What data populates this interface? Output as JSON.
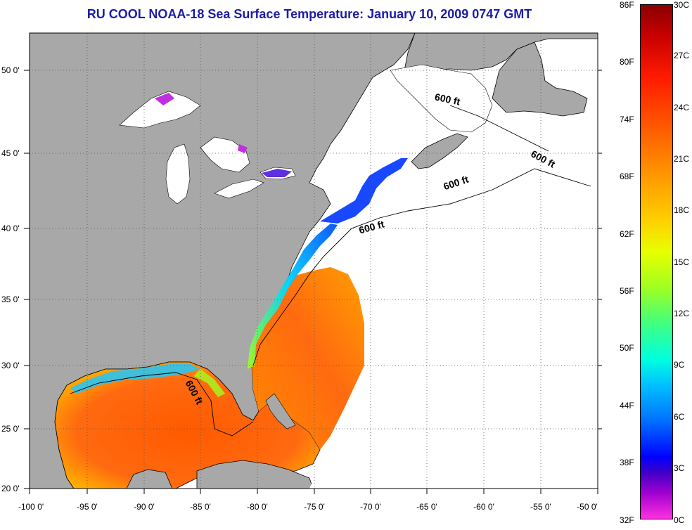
{
  "title": "RU COOL  NOAA-18  Sea Surface Temperature:  January 10, 2009 0747 GMT",
  "lat_labels": [
    "50 0'",
    "45 0'",
    "40 0'",
    "35 0'",
    "30 0'",
    "25 0'",
    "20 0'"
  ],
  "lon_labels": [
    "-100 0'",
    "-95 0'",
    "-90 0'",
    "-85 0'",
    "-80 0'",
    "-75 0'",
    "-70 0'",
    "-65 0'",
    "-60 0'",
    "-55 0'",
    "-50 0'"
  ],
  "colorbar": {
    "f_labels": [
      "86F",
      "80F",
      "74F",
      "68F",
      "62F",
      "56F",
      "50F",
      "44F",
      "38F",
      "32F"
    ],
    "c_labels": [
      "30C",
      "27C",
      "24C",
      "21C",
      "18C",
      "15C",
      "12C",
      "9C",
      "6C",
      "3C",
      "0C"
    ]
  },
  "contour_label": "600 ft",
  "colors": {
    "land": "#a8a8a8",
    "ocean_no_data": "#ffffff",
    "title": "#1c1ca8",
    "coast": "#000000"
  }
}
